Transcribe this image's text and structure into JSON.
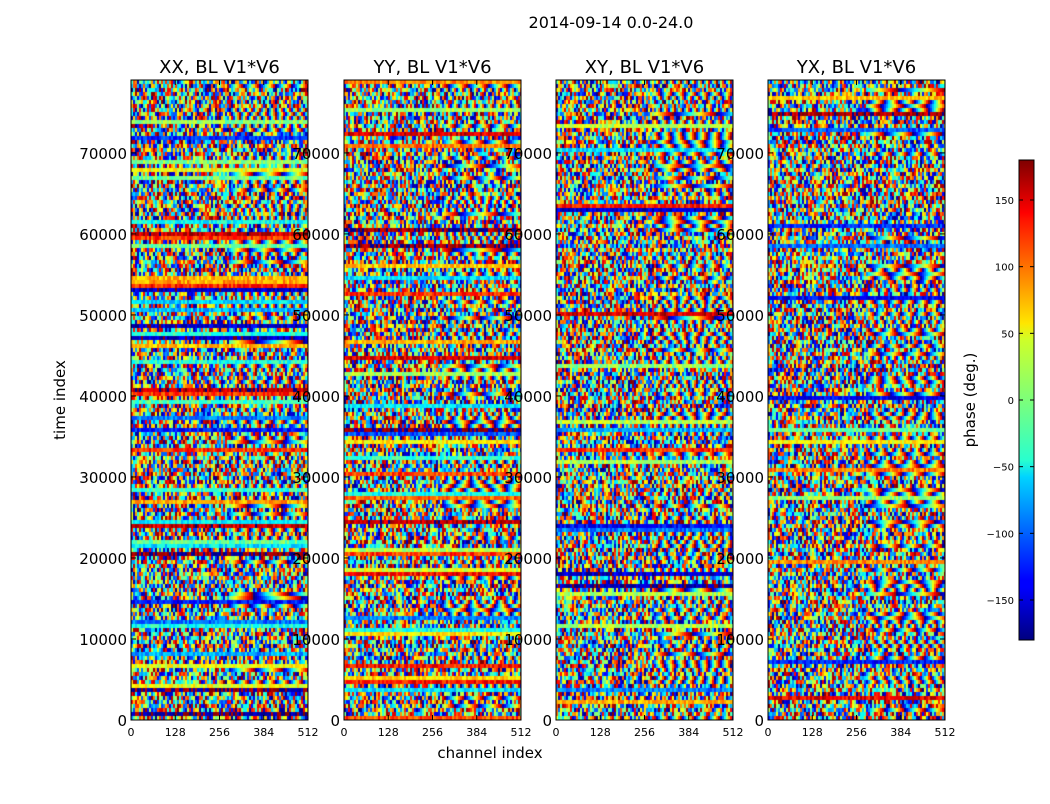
{
  "chart_data": {
    "type": "heatmap",
    "title": "2014-09-14 0.0-24.0",
    "xlabel": "channel index",
    "ylabel": "time index",
    "xlim": [
      0,
      512
    ],
    "ylim": [
      0,
      79000
    ],
    "x_ticks": [
      "0",
      "128",
      "256",
      "384",
      "512"
    ],
    "y_ticks": [
      "0",
      "10000",
      "20000",
      "30000",
      "40000",
      "50000",
      "60000",
      "70000"
    ],
    "panels": [
      {
        "title": "XX, BL V1*V6"
      },
      {
        "title": "YY, BL V1*V6"
      },
      {
        "title": "XY, BL V1*V6"
      },
      {
        "title": "YX, BL V1*V6"
      }
    ],
    "colorbar": {
      "label": "phase (deg.)",
      "range": [
        -180,
        180
      ],
      "ticks": [
        "−150",
        "−100",
        "−50",
        "0",
        "50",
        "100",
        "150"
      ],
      "colormap": "jet"
    }
  }
}
